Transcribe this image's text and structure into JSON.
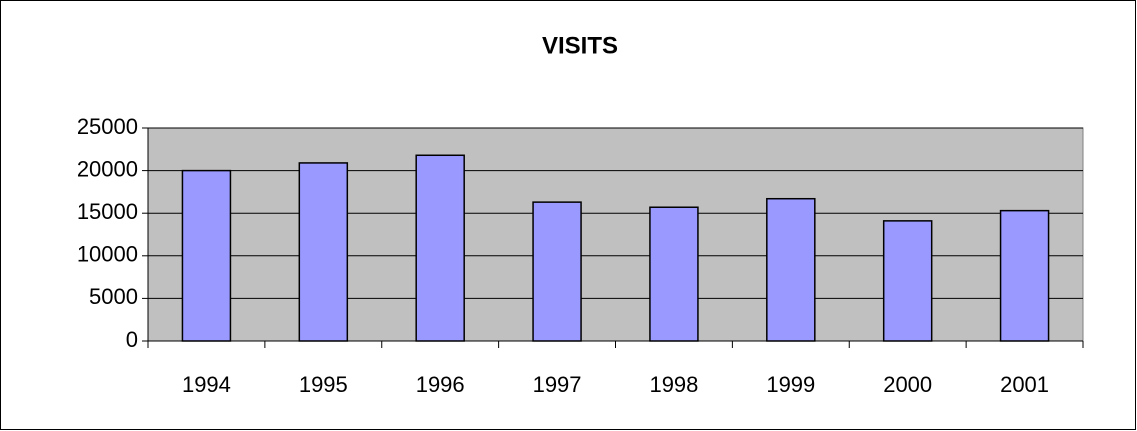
{
  "chart_data": {
    "type": "bar",
    "title": "VISITS",
    "categories": [
      "1994",
      "1995",
      "1996",
      "1997",
      "1998",
      "1999",
      "2000",
      "2001"
    ],
    "values": [
      20000,
      20900,
      21800,
      16300,
      15700,
      16700,
      14100,
      15300
    ],
    "color": "#9999ff",
    "ylim": [
      0,
      25000
    ],
    "yticks": [
      0,
      5000,
      10000,
      15000,
      20000,
      25000
    ],
    "grid": true
  }
}
